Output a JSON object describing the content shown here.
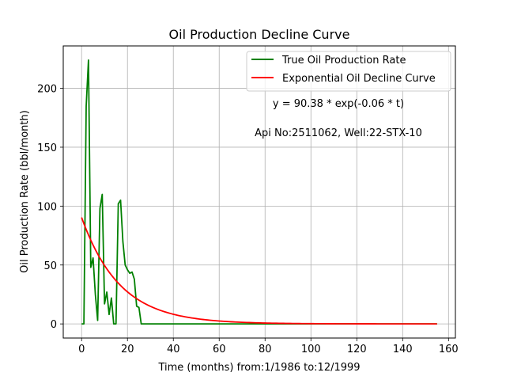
{
  "chart_data": {
    "type": "line",
    "title": "Oil Production Decline Curve",
    "xlabel": "Time (months) from:1/1986 to:12/1999",
    "ylabel": "Oil Production Rate (bbl/month)",
    "xlim": [
      -8,
      163
    ],
    "ylim": [
      -12,
      236
    ],
    "xticks": [
      0,
      20,
      40,
      60,
      80,
      100,
      120,
      140,
      160
    ],
    "yticks": [
      0,
      50,
      100,
      150,
      200
    ],
    "grid": true,
    "legend_position": "top-right",
    "annotations": [
      "y = 90.38 * exp(-0.06 * t)",
      "Api No:2511062, Well:22-STX-10"
    ],
    "series": [
      {
        "name": "True Oil Production Rate",
        "color": "#008000",
        "x": [
          0,
          1,
          2,
          3,
          4,
          5,
          6,
          7,
          8,
          9,
          10,
          11,
          12,
          13,
          14,
          15,
          16,
          17,
          18,
          19,
          20,
          21,
          22,
          23,
          24,
          25,
          26,
          30,
          40,
          60,
          80,
          100,
          120,
          140,
          155
        ],
        "y": [
          0,
          0,
          185,
          224,
          48,
          56,
          25,
          3,
          98,
          110,
          17,
          27,
          8,
          22,
          0,
          0,
          102,
          105,
          70,
          50,
          46,
          43,
          44,
          38,
          15,
          14,
          0,
          0,
          0,
          0,
          0,
          0,
          0,
          0,
          0
        ]
      },
      {
        "name": "Exponential Oil Decline Curve",
        "color": "#ff0000",
        "equation": {
          "a": 90.38,
          "b": -0.06,
          "t_start": 0,
          "t_end": 155
        }
      }
    ]
  }
}
